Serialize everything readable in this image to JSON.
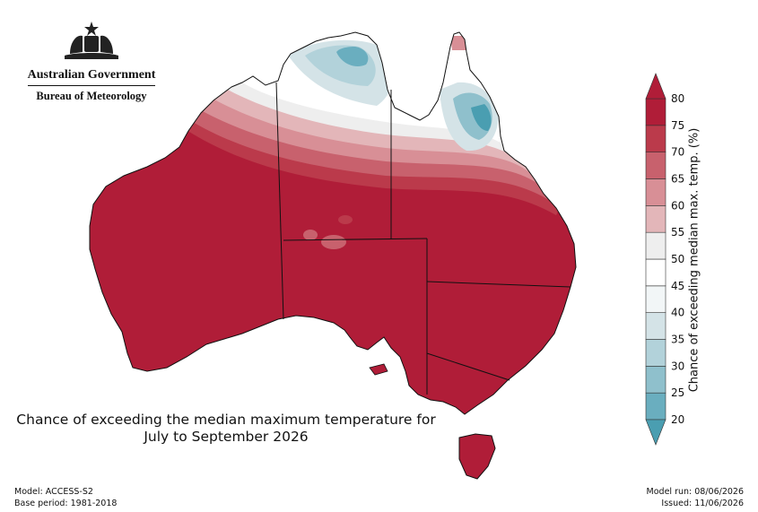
{
  "header": {
    "government": "Australian Government",
    "bureau": "Bureau of Meteorology",
    "logo_icon": "coat-of-arms-icon"
  },
  "map": {
    "title_line1": "Chance of exceeding the median maximum temperature for",
    "title_line2": "July to September 2026",
    "regions": [
      {
        "name": "northern-australia",
        "level": "20-60"
      },
      {
        "name": "central-southern-australia",
        "level": "80+"
      }
    ]
  },
  "colorbar": {
    "label": "Chance of exceeding median max. temp. (%)",
    "ticks": [
      "20",
      "25",
      "30",
      "35",
      "40",
      "45",
      "50",
      "55",
      "60",
      "65",
      "70",
      "75",
      "80"
    ],
    "colors": [
      "#4a9eb1",
      "#6aaebf",
      "#8fc0cc",
      "#b2d2da",
      "#d4e3e7",
      "#f2f6f7",
      "#ffffff",
      "#eeeeee",
      "#e3b6b9",
      "#d88f96",
      "#c8616d",
      "#bb3a4b",
      "#b01d38"
    ]
  },
  "footer": {
    "model": "Model: ACCESS-S2",
    "base_period": "Base period: 1981-2018",
    "model_run": "Model run: 08/06/2026",
    "issued": "Issued: 11/06/2026"
  }
}
